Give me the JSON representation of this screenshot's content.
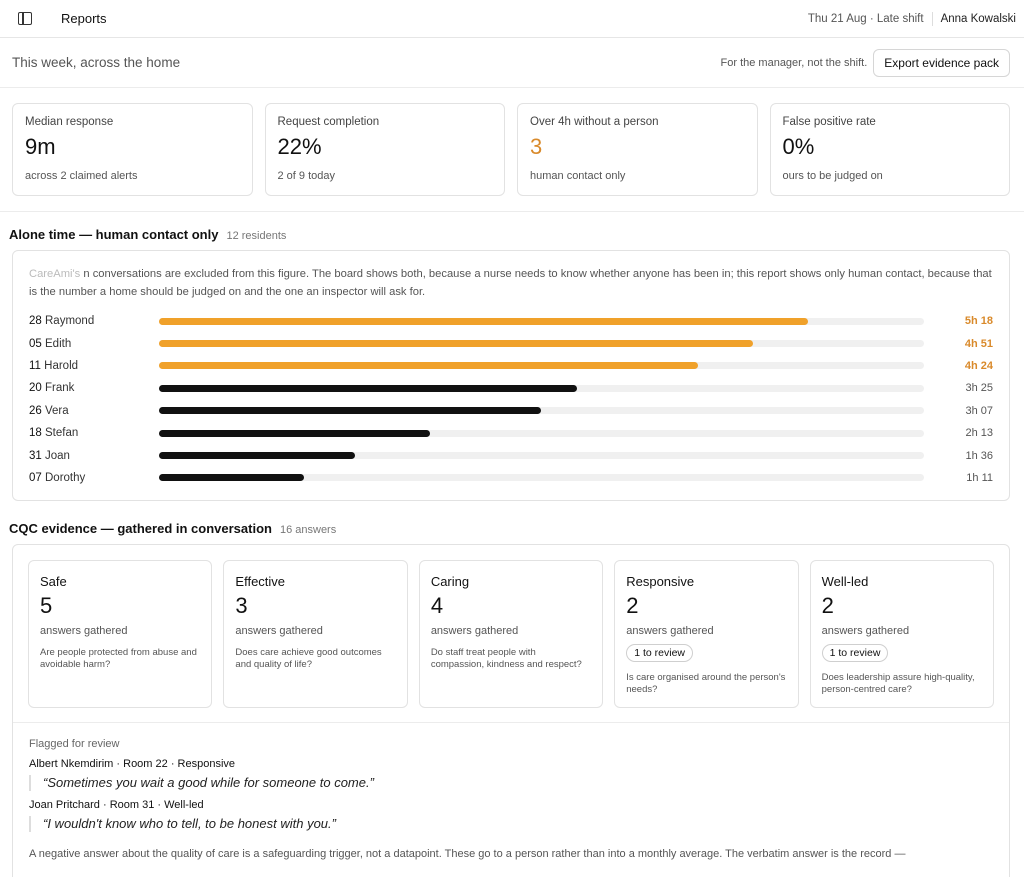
{
  "topbar": {
    "title": "Reports",
    "date_shift": "Thu 21 Aug · Late shift",
    "user": "Anna Kowalski"
  },
  "subbar": {
    "title": "This week, across the home",
    "note": "For the manager, not the shift.",
    "export_label": "Export evidence pack"
  },
  "kpis": [
    {
      "label": "Median response",
      "value": "9m",
      "sub": "across 2 claimed alerts",
      "warn": false
    },
    {
      "label": "Request completion",
      "value": "22%",
      "sub": "2 of 9 today",
      "warn": false
    },
    {
      "label": "Over 4h without a person",
      "value": "3",
      "sub": "human contact only",
      "warn": true
    },
    {
      "label": "False positive rate",
      "value": "0%",
      "sub": "ours to be judged on",
      "warn": false
    }
  ],
  "alone": {
    "title": "Alone time — human contact only",
    "count": "12 residents",
    "brand": "CareAmi's",
    "note": "n conversations are excluded from this figure. The board shows both, because a nurse needs to know whether anyone has been in; this report shows only human contact, because that is the number a home should be judged on and the one an inspector will ask for.",
    "max_minutes": 375,
    "rows": [
      {
        "room": "28",
        "name": "Raymond",
        "label": "5h 18",
        "minutes": 318,
        "warn": true
      },
      {
        "room": "05",
        "name": "Edith",
        "label": "4h 51",
        "minutes": 291,
        "warn": true
      },
      {
        "room": "11",
        "name": "Harold",
        "label": "4h 24",
        "minutes": 264,
        "warn": true
      },
      {
        "room": "20",
        "name": "Frank",
        "label": "3h 25",
        "minutes": 205,
        "warn": false
      },
      {
        "room": "26",
        "name": "Vera",
        "label": "3h 07",
        "minutes": 187,
        "warn": false
      },
      {
        "room": "18",
        "name": "Stefan",
        "label": "2h 13",
        "minutes": 133,
        "warn": false
      },
      {
        "room": "31",
        "name": "Joan",
        "label": "1h 36",
        "minutes": 96,
        "warn": false
      },
      {
        "room": "07",
        "name": "Dorothy",
        "label": "1h 11",
        "minutes": 71,
        "warn": false
      }
    ]
  },
  "cqc": {
    "title": "CQC evidence — gathered in conversation",
    "count": "16 answers",
    "cards": [
      {
        "name": "Safe",
        "value": "5",
        "sub": "answers gathered",
        "review": "",
        "question": "Are people protected from abuse and avoidable harm?"
      },
      {
        "name": "Effective",
        "value": "3",
        "sub": "answers gathered",
        "review": "",
        "question": "Does care achieve good outcomes and quality of life?"
      },
      {
        "name": "Caring",
        "value": "4",
        "sub": "answers gathered",
        "review": "",
        "question": "Do staff treat people with compassion, kindness and respect?"
      },
      {
        "name": "Responsive",
        "value": "2",
        "sub": "answers gathered",
        "review": "1 to review",
        "question": "Is care organised around the person's needs?"
      },
      {
        "name": "Well-led",
        "value": "2",
        "sub": "answers gathered",
        "review": "1 to review",
        "question": "Does leadership assure high-quality, person-centred care?"
      }
    ],
    "flagged": {
      "title": "Flagged for review",
      "items": [
        {
          "who": "Albert Nkemdirim · Room 22 · Responsive",
          "quote": "“Sometimes you wait a good while for someone to come.”"
        },
        {
          "who": "Joan Pritchard · Room 31 · Well-led",
          "quote": "“I wouldn't know who to tell, to be honest with you.”"
        }
      ],
      "footer": "A negative answer about the quality of care is a safeguarding trigger, not a datapoint. These go to a person rather than into a monthly average. The verbatim answer is the record —"
    }
  }
}
